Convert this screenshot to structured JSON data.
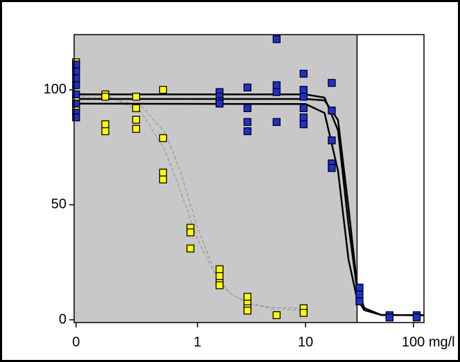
{
  "chart_data": {
    "type": "scatter",
    "xscale": "log",
    "xlim": [
      0.072,
      125
    ],
    "ylim": [
      -1.2,
      124
    ],
    "xticks": [
      {
        "value": 0.075,
        "label": "0"
      },
      1,
      10,
      {
        "value": 100,
        "label": "100 mg/l"
      }
    ],
    "yticks": [
      0,
      50,
      100
    ],
    "shaded_xmax": 30,
    "shade_color": "#c8c8c8",
    "series": [
      {
        "color": "#ffff00",
        "x": [
          0.075,
          0.075,
          0.075,
          0.075,
          0.075,
          0.14,
          0.14,
          0.14,
          0.14,
          0.27,
          0.27,
          0.27,
          0.27,
          0.48,
          0.48,
          0.48,
          0.48,
          0.86,
          0.86,
          0.86,
          1.6,
          1.6,
          1.6,
          1.6,
          2.9,
          2.9,
          2.9,
          2.9,
          5.4,
          9.6,
          9.6
        ],
        "values": [
          112,
          110,
          97,
          92,
          95,
          98,
          97,
          85,
          82,
          97,
          92,
          87,
          83,
          100,
          79,
          64,
          61,
          40,
          38,
          31,
          22,
          19,
          16,
          15,
          10,
          7,
          5,
          4,
          2,
          5,
          3
        ]
      },
      {
        "color": "#1f2fd6",
        "x": [
          0.075,
          0.075,
          0.075,
          0.075,
          0.075,
          0.075,
          0.075,
          0.075,
          1.6,
          1.6,
          1.6,
          1.6,
          2.9,
          2.9,
          2.9,
          2.9,
          5.4,
          5.4,
          5.4,
          5.4,
          9.6,
          9.6,
          9.6,
          9.6,
          9.6,
          9.6,
          17.5,
          17.5,
          17.5,
          17.5,
          17.5,
          31.6,
          31.6,
          31.6,
          60,
          60,
          107,
          107
        ],
        "values": [
          111,
          108,
          105,
          102,
          98,
          94,
          90,
          88,
          99,
          97,
          95,
          94,
          101,
          92,
          86,
          82,
          122,
          102,
          99,
          86,
          107,
          100,
          97,
          92,
          88,
          85,
          103,
          91,
          78,
          68,
          66,
          14,
          11,
          8,
          2,
          1,
          2,
          1
        ]
      }
    ],
    "lines": [
      {
        "color": "#999999",
        "dash": true,
        "x": [
          0.075,
          0.15,
          0.3,
          0.5,
          0.7,
          1,
          1.5,
          2,
          3,
          5,
          10
        ],
        "values": [
          98.7,
          97.3,
          90.3,
          73.7,
          55.6,
          35.1,
          18.3,
          11.5,
          6.9,
          4.8,
          4.1
        ]
      },
      {
        "color": "#999999",
        "dash": true,
        "x": [
          0.075,
          0.15,
          0.3,
          0.5,
          0.7,
          1,
          1.5,
          2,
          3,
          5,
          10
        ],
        "values": [
          97,
          96.5,
          93.1,
          81.4,
          64.0,
          40.0,
          19.2,
          11.6,
          7.0,
          5.45,
          5.06
        ]
      },
      {
        "color": "#000000",
        "dash": false,
        "x": [
          0.075,
          10,
          15,
          20,
          25,
          30,
          35,
          50,
          100,
          125
        ],
        "values": [
          96,
          96,
          95.4,
          86.9,
          49,
          15.1,
          5.1,
          2.1,
          2,
          2
        ]
      },
      {
        "color": "#000000",
        "dash": false,
        "x": [
          0.075,
          10,
          15,
          20,
          25,
          30,
          35,
          50,
          100,
          125
        ],
        "values": [
          94,
          93.8,
          89.9,
          64.8,
          26.3,
          9.1,
          4.2,
          2.1,
          2,
          2
        ]
      },
      {
        "color": "#000000",
        "dash": false,
        "x": [
          0.075,
          10,
          15,
          20,
          25,
          30,
          35,
          50,
          100,
          125
        ],
        "values": [
          98,
          98,
          96.6,
          82.4,
          41.3,
          13.4,
          5.1,
          2.1,
          2,
          2
        ]
      }
    ]
  }
}
